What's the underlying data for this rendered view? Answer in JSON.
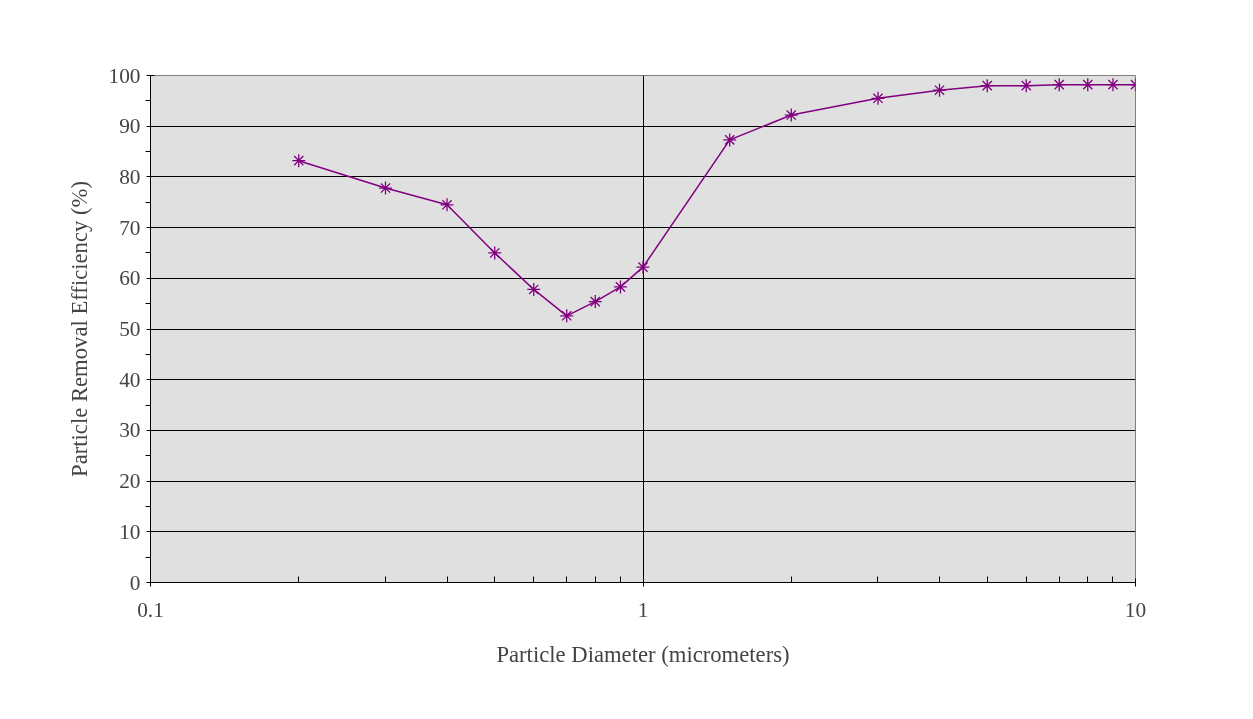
{
  "chart_data": {
    "type": "line",
    "xlabel": "Particle Diameter (micrometers)",
    "ylabel": "Particle Removal Efficiency (%)",
    "x": [
      0.2,
      0.3,
      0.4,
      0.5,
      0.6,
      0.7,
      0.8,
      0.9,
      1,
      1.5,
      2,
      3,
      4,
      5,
      6,
      7,
      8,
      9,
      10
    ],
    "series": [
      {
        "color": "#800080",
        "values": [
          83.2,
          77.8,
          74.5,
          65,
          57.8,
          52.6,
          55.4,
          58.3,
          62.2,
          87.3,
          92.2,
          95.5,
          97.1,
          98,
          98,
          98.2,
          98.2,
          98.2,
          98.2
        ]
      }
    ],
    "log": "x",
    "xlim": [
      0.1,
      10
    ],
    "xticks": [
      0.1,
      1,
      10
    ],
    "ylim": [
      0,
      100
    ],
    "yticks": [
      0,
      10,
      20,
      30,
      40,
      50,
      60,
      70,
      80,
      90,
      100
    ],
    "grid": true,
    "marker": "cross",
    "line_style": "solid"
  }
}
